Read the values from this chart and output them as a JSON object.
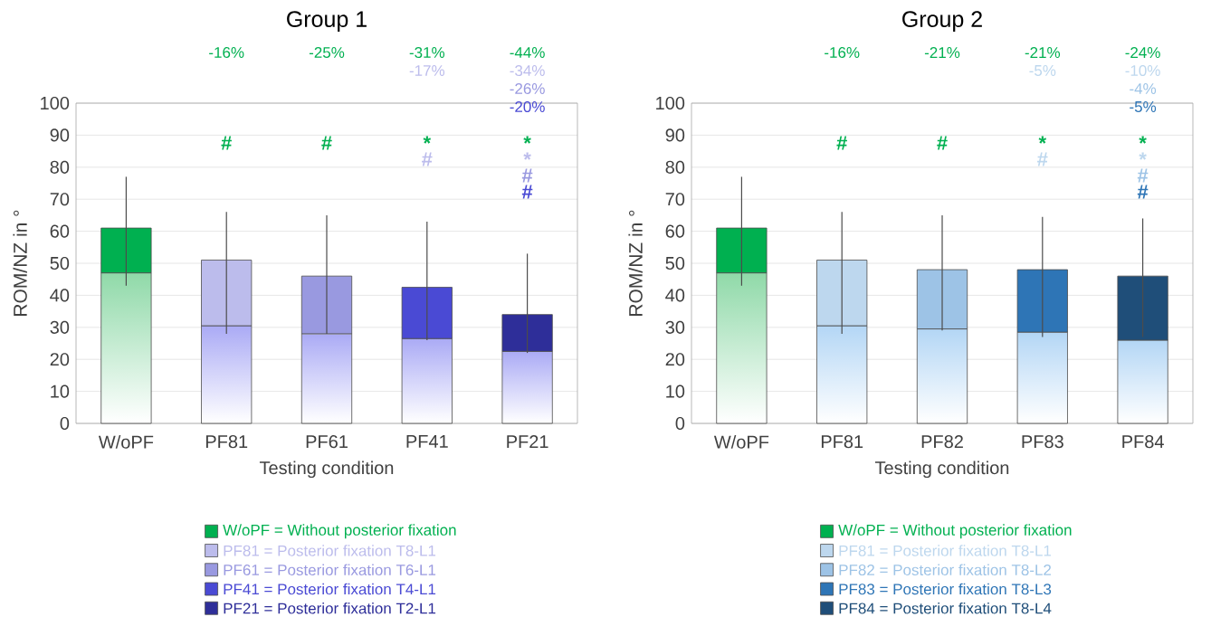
{
  "chart_data": [
    {
      "type": "bar",
      "title": "Group 1",
      "xlabel": "Testing condition",
      "ylabel": "ROM/NZ in °",
      "categories": [
        "W/oPF",
        "PF81",
        "PF61",
        "PF41",
        "PF21"
      ],
      "ylim": [
        0,
        100
      ],
      "yticks": [
        0,
        10,
        20,
        30,
        40,
        50,
        60,
        70,
        80,
        90,
        100
      ],
      "grid": "y",
      "stacked": true,
      "series": [
        {
          "colors": [
            "#8fd9a8",
            "#aaaaf5",
            "#aaaaf5",
            "#aaaaf5",
            "#aaaaf5"
          ],
          "values": [
            47,
            30.5,
            28,
            26.5,
            22.5
          ]
        },
        {
          "colors": [
            "#00b050",
            "#bcbcec",
            "#9999e0",
            "#4a4ad4",
            "#2e2e99"
          ],
          "values": [
            14,
            20.5,
            18,
            16,
            11.5
          ],
          "errors": [
            [
              43,
              77
            ],
            [
              28,
              66
            ],
            [
              28,
              65
            ],
            [
              26,
              63
            ],
            [
              22,
              53
            ]
          ]
        }
      ],
      "annotations": [
        "-16%",
        "-25%",
        "-31%",
        "-17%",
        "-44%",
        "-34%",
        "-26%",
        "-20%",
        "#",
        "#",
        "*",
        "#",
        "*",
        "*",
        "#",
        "#",
        "W/oPF = Without  posterior fixation",
        "PF81 = Posterior fixation T8-L1",
        "PF61 = Posterior fixation T6-L1",
        "PF41 = Posterior fixation T4-L1",
        "PF21 = Posterior fixation T2-L1"
      ]
    },
    {
      "type": "bar",
      "title": "Group 2",
      "xlabel": "Testing condition",
      "ylabel": "ROM/NZ in °",
      "categories": [
        "W/oPF",
        "PF81",
        "PF82",
        "PF83",
        "PF84"
      ],
      "ylim": [
        0,
        100
      ],
      "yticks": [
        0,
        10,
        20,
        30,
        40,
        50,
        60,
        70,
        80,
        90,
        100
      ],
      "grid": "y",
      "stacked": true,
      "series": [
        {
          "colors": [
            "#8fd9a8",
            "#b3d6f5",
            "#b3d6f5",
            "#b3d6f5",
            "#b3d6f5"
          ],
          "values": [
            47,
            30.5,
            29.5,
            28.5,
            26
          ]
        },
        {
          "colors": [
            "#00b050",
            "#bdd7ee",
            "#9dc3e6",
            "#2e75b6",
            "#1f4e79"
          ],
          "values": [
            14,
            20.5,
            18.5,
            19.5,
            20
          ],
          "errors": [
            [
              43,
              77
            ],
            [
              28,
              66
            ],
            [
              29,
              65
            ],
            [
              27,
              64.5
            ],
            [
              27,
              64
            ]
          ]
        }
      ],
      "annotations": [
        "-16%",
        "-21%",
        "-21%",
        "-5%",
        "-24%",
        "-10%",
        "-4%",
        "-5%",
        "#",
        "#",
        "*",
        "#",
        "*",
        "*",
        "#",
        "#",
        "W/oPF = Without  posterior fixation",
        "PF81 = Posterior fixation T8-L1",
        "PF82 = Posterior fixation T8-L2",
        "PF83 = Posterior fixation T8-L3",
        "PF84 = Posterior fixation T8-L4"
      ]
    }
  ]
}
